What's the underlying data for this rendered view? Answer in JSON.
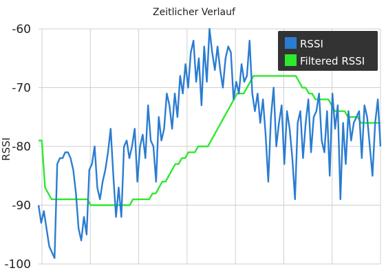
{
  "chart_data": {
    "type": "line",
    "title": "Zeitlicher Verlauf",
    "xlabel": "",
    "ylabel": "RSSI",
    "ylim": [
      -100,
      -60
    ],
    "yticks": [
      -60,
      -70,
      -80,
      -90,
      -100
    ],
    "grid": true,
    "legend": {
      "placement": "top-right",
      "background": "#333333"
    },
    "series": [
      {
        "name": "RSSI",
        "color": "#2a7cd1",
        "values": [
          -90,
          -93,
          -91,
          -94,
          -97,
          -98,
          -99,
          -83,
          -82,
          -82,
          -81,
          -81,
          -82,
          -84,
          -88,
          -94,
          -96,
          -92,
          -95,
          -84,
          -83,
          -80,
          -87,
          -89,
          -86,
          -84,
          -81,
          -77,
          -85,
          -92,
          -87,
          -92,
          -80,
          -79,
          -82,
          -80,
          -77,
          -86,
          -80,
          -78,
          -82,
          -73,
          -79,
          -80,
          -86,
          -75,
          -79,
          -77,
          -71,
          -73,
          -77,
          -71,
          -75,
          -68,
          -71,
          -66,
          -70,
          -64,
          -62,
          -69,
          -65,
          -73,
          -63,
          -69,
          -60,
          -64,
          -67,
          -63,
          -67,
          -70,
          -65,
          -63,
          -64,
          -72,
          -69,
          -71,
          -66,
          -69,
          -68,
          -62,
          -71,
          -74,
          -71,
          -76,
          -72,
          -78,
          -86,
          -75,
          -70,
          -80,
          -76,
          -73,
          -83,
          -74,
          -77,
          -82,
          -89,
          -76,
          -74,
          -82,
          -76,
          -72,
          -81,
          -75,
          -74,
          -71,
          -79,
          -81,
          -74,
          -85,
          -71,
          -77,
          -73,
          -89,
          -76,
          -83,
          -74,
          -79,
          -76,
          -75,
          -74,
          -82,
          -73,
          -75,
          -80,
          -85,
          -76,
          -72,
          -80
        ]
      },
      {
        "name": "Filtered RSSI",
        "color": "#2ee82e",
        "values": [
          -79,
          -79,
          -87,
          -88,
          -89,
          -89,
          -89,
          -89,
          -89,
          -89,
          -89,
          -89,
          -89,
          -89,
          -89,
          -89,
          -90,
          -90,
          -90,
          -90,
          -90,
          -90,
          -90,
          -90,
          -90,
          -90,
          -90,
          -90,
          -90,
          -89,
          -89,
          -89,
          -89,
          -89,
          -89,
          -88,
          -88,
          -87,
          -86,
          -86,
          -85,
          -84,
          -83,
          -83,
          -82,
          -82,
          -81,
          -81,
          -81,
          -80,
          -80,
          -80,
          -80,
          -79,
          -78,
          -77,
          -76,
          -75,
          -74,
          -73,
          -72,
          -71,
          -71,
          -71,
          -70,
          -69,
          -68,
          -68,
          -68,
          -68,
          -68,
          -68,
          -68,
          -68,
          -68,
          -68,
          -68,
          -68,
          -68,
          -68,
          -69,
          -70,
          -70,
          -71,
          -71,
          -72,
          -72,
          -72,
          -72,
          -72,
          -73,
          -74,
          -74,
          -74,
          -74,
          -75,
          -75,
          -75,
          -75,
          -76,
          -76,
          -76,
          -76,
          -76,
          -76,
          -76
        ]
      }
    ]
  }
}
